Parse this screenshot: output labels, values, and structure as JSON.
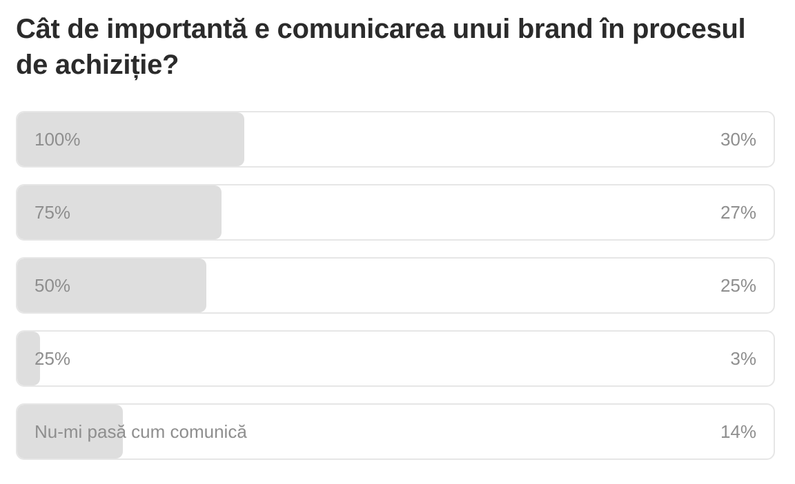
{
  "poll": {
    "question": "Cât de importantă e comunicarea unui brand în procesul de achiziție?",
    "options": [
      {
        "label": "100%",
        "percent_label": "30%",
        "fill_fraction": 0.3
      },
      {
        "label": "75%",
        "percent_label": "27%",
        "fill_fraction": 0.27
      },
      {
        "label": "50%",
        "percent_label": "25%",
        "fill_fraction": 0.25
      },
      {
        "label": "25%",
        "percent_label": "3%",
        "fill_fraction": 0.03
      },
      {
        "label": "Nu-mi pasă cum comunică",
        "percent_label": "14%",
        "fill_fraction": 0.14
      }
    ]
  },
  "colors": {
    "question_text": "#2b2b2b",
    "option_text": "#8e8e8e",
    "bar_fill": "#dedede",
    "option_border": "#e6e6e6",
    "background": "#ffffff"
  }
}
